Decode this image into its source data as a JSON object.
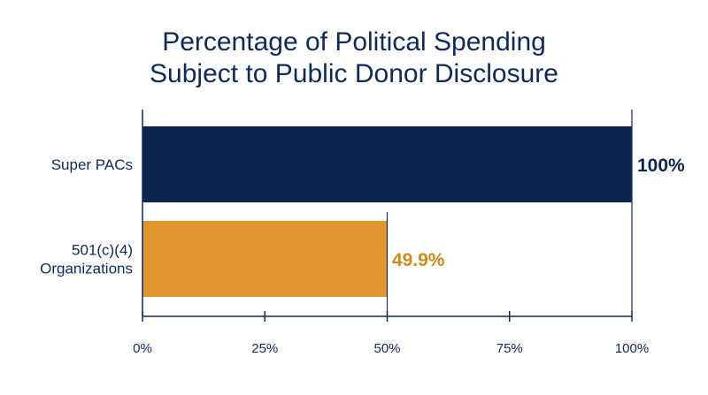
{
  "chart_data": {
    "type": "bar",
    "orientation": "horizontal",
    "title": [
      "Percentage of Political Spending",
      "Subject to Public Donor Disclosure"
    ],
    "categories": [
      [
        "Super PACs"
      ],
      [
        "501(c)(4)",
        "Organizations"
      ]
    ],
    "values": [
      100,
      49.9
    ],
    "value_labels": [
      "100%",
      "49.9%"
    ],
    "colors": [
      "#0b2550",
      "#e0962e"
    ],
    "value_label_colors": [
      "#0b2550",
      "#d08a1c"
    ],
    "xlim": [
      0,
      100
    ],
    "x_ticks": [
      0,
      25,
      50,
      75,
      100
    ],
    "x_tick_labels": [
      "0%",
      "25%",
      "50%",
      "75%",
      "100%"
    ],
    "xlabel": "",
    "ylabel": "",
    "grid": false,
    "legend": "none"
  }
}
